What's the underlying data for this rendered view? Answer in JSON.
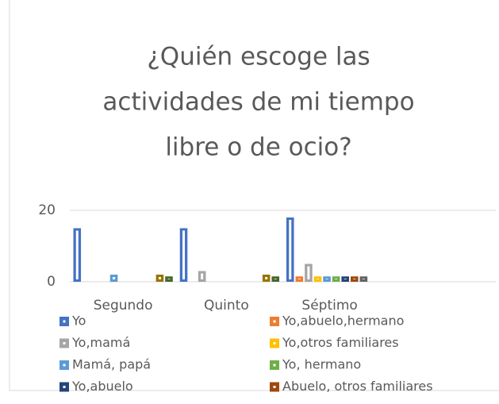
{
  "chart_data": {
    "type": "bar",
    "title": [
      "¿Quién escoge las",
      "actividades de mi tiempo",
      "libre o de ocio?"
    ],
    "categories": [
      "Segundo",
      "Quinto",
      "Séptimo",
      null
    ],
    "ylim": [
      0,
      20
    ],
    "yticks": [
      0,
      20
    ],
    "grid": true,
    "legend": "bottom",
    "series": [
      {
        "name": "Yo",
        "color": "#4472c4",
        "values": [
          15,
          15,
          18,
          null
        ]
      },
      {
        "name": "Yo,abuelo,hermano",
        "color": "#ed7d31",
        "values": [
          null,
          null,
          1.5,
          null
        ]
      },
      {
        "name": "Yo,mamá",
        "color": "#a5a5a5",
        "values": [
          null,
          3,
          5,
          null
        ]
      },
      {
        "name": "Yo,otros familiares",
        "color": "#ffc000",
        "values": [
          null,
          null,
          1.5,
          null
        ]
      },
      {
        "name": "Mamá, papá",
        "color": "#5b9bd5",
        "values": [
          2,
          null,
          1.5,
          null
        ]
      },
      {
        "name": "Yo, hermano",
        "color": "#70ad47",
        "values": [
          null,
          null,
          1.5,
          null
        ]
      },
      {
        "name": "Yo,abuelo",
        "color": "#264478",
        "values": [
          null,
          null,
          1.5,
          null
        ]
      },
      {
        "name": "Abuelo, otros familiares",
        "color": "#9e480e",
        "values": [
          null,
          null,
          1.5,
          null
        ]
      },
      {
        "color": "#636363",
        "values": [
          null,
          null,
          1.5,
          null
        ]
      },
      {
        "color": "#997300",
        "values": [
          2,
          2,
          null,
          null
        ]
      },
      {
        "color": "#43682b",
        "values": [
          1.5,
          1.5,
          null,
          null
        ]
      }
    ]
  }
}
